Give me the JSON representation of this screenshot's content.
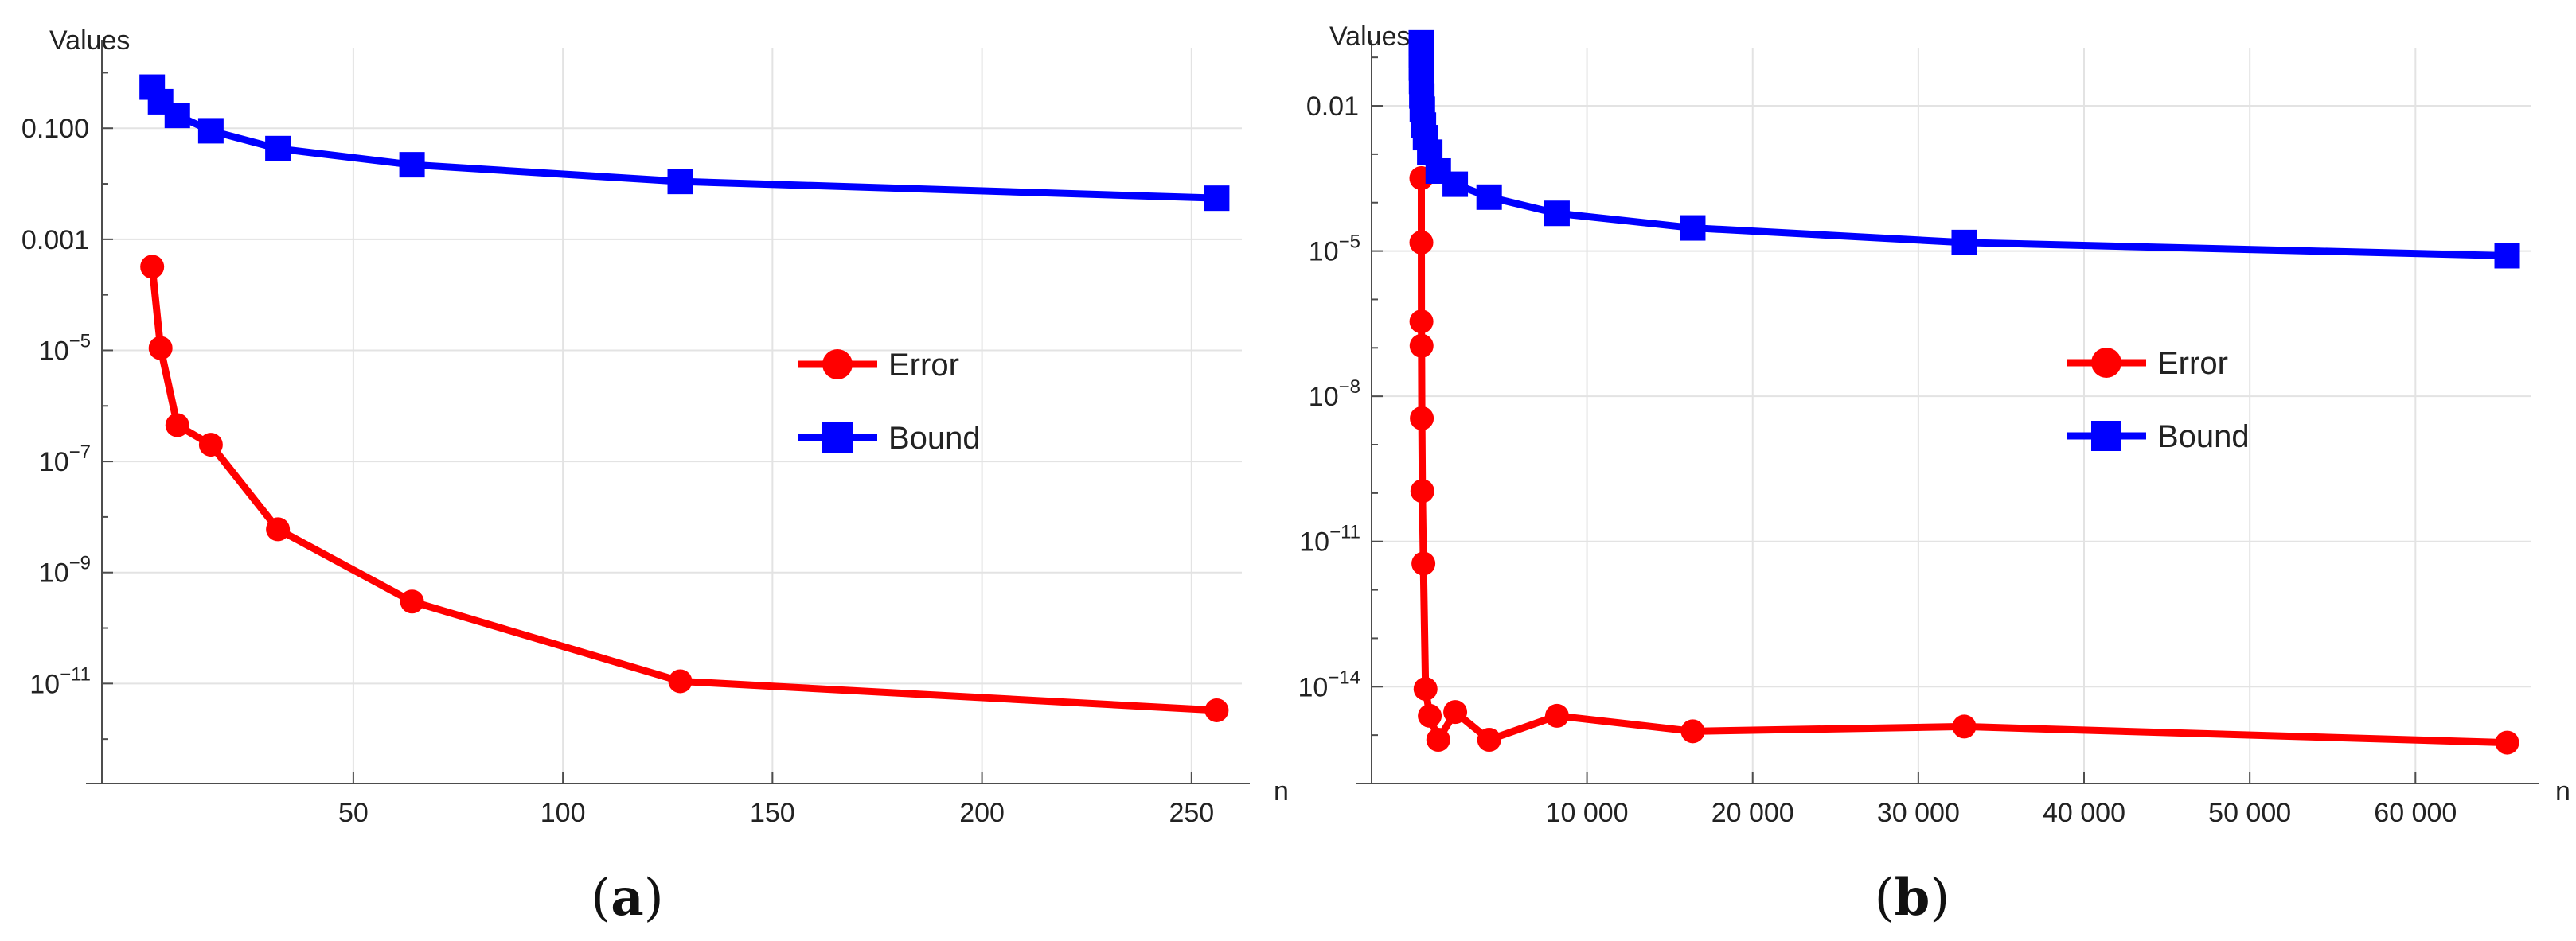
{
  "chart_data": [
    {
      "type": "line",
      "panel_label": "(a)",
      "panel_letter": "a",
      "ylabel": "Values",
      "xlabel": "n",
      "y_scale": "log",
      "xlim": [
        -10,
        262
      ],
      "ylim_log10": [
        -12.8,
        0.45
      ],
      "x_ticks": [
        {
          "value": 50,
          "label": "50"
        },
        {
          "value": 100,
          "label": "100"
        },
        {
          "value": 150,
          "label": "150"
        },
        {
          "value": 200,
          "label": "200"
        },
        {
          "value": 250,
          "label": "250"
        }
      ],
      "y_ticks": [
        {
          "exp": -1,
          "label": "0.100"
        },
        {
          "exp": -3,
          "label": "0.001"
        },
        {
          "exp": -5,
          "label": "10",
          "sup": "−5"
        },
        {
          "exp": -7,
          "label": "10",
          "sup": "−7"
        },
        {
          "exp": -9,
          "label": "10",
          "sup": "−9"
        },
        {
          "exp": -11,
          "label": "10",
          "sup": "−11"
        }
      ],
      "grid": true,
      "legend_position": "right-middle",
      "series": [
        {
          "name": "Error",
          "color": "#ff0000",
          "marker": "circle",
          "points": [
            {
              "x": 2,
              "y": 0.00032
            },
            {
              "x": 4,
              "y": 1.1e-05
            },
            {
              "x": 8,
              "y": 4.5e-07
            },
            {
              "x": 16,
              "y": 2e-07
            },
            {
              "x": 32,
              "y": 6e-09
            },
            {
              "x": 64,
              "y": 3e-10
            },
            {
              "x": 128,
              "y": 1.1e-11
            },
            {
              "x": 256,
              "y": 3.3e-12
            }
          ]
        },
        {
          "name": "Bound",
          "color": "#0000ff",
          "marker": "square",
          "points": [
            {
              "x": 2,
              "y": 0.55
            },
            {
              "x": 4,
              "y": 0.3
            },
            {
              "x": 8,
              "y": 0.17
            },
            {
              "x": 16,
              "y": 0.09
            },
            {
              "x": 32,
              "y": 0.043
            },
            {
              "x": 64,
              "y": 0.022
            },
            {
              "x": 128,
              "y": 0.011
            },
            {
              "x": 256,
              "y": 0.0055
            }
          ]
        }
      ]
    },
    {
      "type": "line",
      "panel_label": "(b)",
      "panel_letter": "b",
      "ylabel": "Values",
      "xlabel": "n",
      "y_scale": "log",
      "xlim": [
        -3000,
        67000
      ],
      "ylim_log10": [
        -16.0,
        -0.8
      ],
      "x_ticks": [
        {
          "value": 10000,
          "label": "10 000"
        },
        {
          "value": 20000,
          "label": "20 000"
        },
        {
          "value": 30000,
          "label": "30 000"
        },
        {
          "value": 40000,
          "label": "40 000"
        },
        {
          "value": 50000,
          "label": "50 000"
        },
        {
          "value": 60000,
          "label": "60 000"
        }
      ],
      "y_ticks": [
        {
          "exp": -2,
          "label": "0.01"
        },
        {
          "exp": -5,
          "label": "10",
          "sup": "−5"
        },
        {
          "exp": -8,
          "label": "10",
          "sup": "−8"
        },
        {
          "exp": -11,
          "label": "10",
          "sup": "−11"
        },
        {
          "exp": -14,
          "label": "10",
          "sup": "−14"
        }
      ],
      "grid": true,
      "legend_position": "right-middle",
      "series": [
        {
          "name": "Error",
          "color": "#ff0000",
          "marker": "circle",
          "points": [
            {
              "x": 2,
              "y": 0.00032
            },
            {
              "x": 4,
              "y": 1.5e-05
            },
            {
              "x": 8,
              "y": 3.5e-07
            },
            {
              "x": 16,
              "y": 1.1e-07
            },
            {
              "x": 32,
              "y": 3.5e-09
            },
            {
              "x": 64,
              "y": 1.1e-10
            },
            {
              "x": 128,
              "y": 3.5e-12
            },
            {
              "x": 256,
              "y": 9e-15
            },
            {
              "x": 512,
              "y": 2.5e-15
            },
            {
              "x": 1024,
              "y": 8e-16
            },
            {
              "x": 2048,
              "y": 3e-15
            },
            {
              "x": 4096,
              "y": 8e-16
            },
            {
              "x": 8192,
              "y": 2.5e-15
            },
            {
              "x": 16384,
              "y": 1.2e-15
            },
            {
              "x": 32768,
              "y": 1.5e-15
            },
            {
              "x": 65536,
              "y": 7e-16
            }
          ]
        },
        {
          "name": "Bound",
          "color": "#0000ff",
          "marker": "square",
          "points": [
            {
              "x": 2,
              "y": 0.2
            },
            {
              "x": 4,
              "y": 0.11
            },
            {
              "x": 8,
              "y": 0.06
            },
            {
              "x": 16,
              "y": 0.032
            },
            {
              "x": 32,
              "y": 0.016
            },
            {
              "x": 64,
              "y": 0.0085
            },
            {
              "x": 128,
              "y": 0.004
            },
            {
              "x": 256,
              "y": 0.0022
            },
            {
              "x": 512,
              "y": 0.0011
            },
            {
              "x": 1024,
              "y": 0.00045
            },
            {
              "x": 2048,
              "y": 0.00024
            },
            {
              "x": 4096,
              "y": 0.00013
            },
            {
              "x": 8192,
              "y": 6e-05
            },
            {
              "x": 16384,
              "y": 3e-05
            },
            {
              "x": 32768,
              "y": 1.5e-05
            },
            {
              "x": 65536,
              "y": 8e-06
            }
          ]
        }
      ]
    }
  ]
}
